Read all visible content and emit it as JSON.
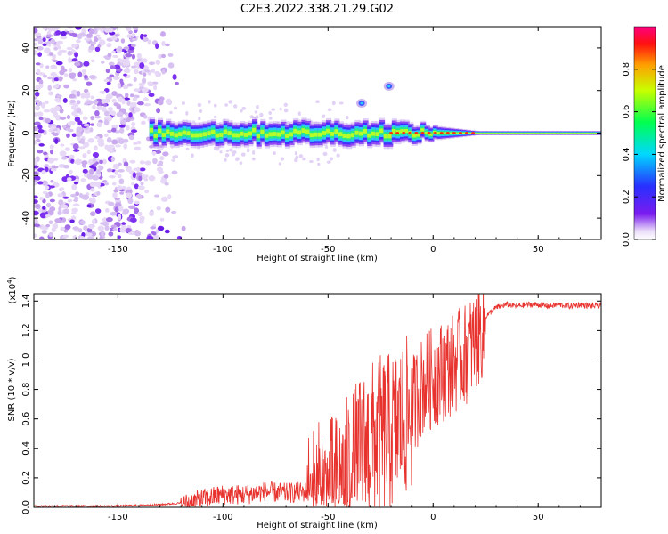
{
  "title": "C2E3.2022.338.21.29.G02",
  "chart_data": [
    {
      "type": "heatmap",
      "xlabel": "Height of straight line (km)",
      "ylabel": "Frequency (Hz)",
      "xlim": [
        -190,
        80
      ],
      "ylim": [
        -50,
        50
      ],
      "xticks": [
        -150,
        -100,
        -50,
        0,
        50
      ],
      "yticks": [
        -40,
        -20,
        0,
        20,
        40
      ],
      "grid": false,
      "colorbar": {
        "label": "Normalized spectral amplitude",
        "range": [
          0,
          1
        ],
        "ticks": [
          "0.0",
          "0.2",
          "0.4",
          "0.6",
          "0.8"
        ]
      },
      "features": [
        {
          "kind": "noise",
          "x_range": [
            -190,
            -118
          ],
          "y_range": [
            -50,
            50
          ]
        },
        {
          "kind": "signal-track",
          "x_range": [
            -135,
            80
          ],
          "center_frequency": 0,
          "spread_hz": [
            6,
            1
          ]
        },
        {
          "kind": "blob",
          "x": -21,
          "y": 22
        },
        {
          "kind": "blob",
          "x": -34,
          "y": 14
        }
      ]
    },
    {
      "type": "line",
      "xlabel": "Height of straight line (km)",
      "ylabel": "SNR (10 * v/v)",
      "y_multiplier": "(x10^4)",
      "xlim": [
        -190,
        80
      ],
      "ylim": [
        0,
        1.45
      ],
      "xticks": [
        -150,
        -100,
        -50,
        0,
        50
      ],
      "yticks": [
        "0.0",
        "0.2",
        "0.4",
        "0.6",
        "0.8",
        "1.0",
        "1.2",
        "1.4"
      ],
      "color": "#e8322d",
      "series": [
        {
          "x": [
            -190,
            -170,
            -150,
            -130,
            -120,
            -110,
            -100,
            -90,
            -80,
            -70,
            -60,
            -50,
            -45,
            -40,
            -35,
            -30,
            -25,
            -20,
            -15,
            -10,
            -5,
            0,
            5,
            10,
            15,
            20,
            25,
            30,
            35,
            40,
            45,
            50,
            55,
            60,
            65,
            70,
            75,
            80
          ],
          "values": [
            0.01,
            0.01,
            0.01,
            0.02,
            0.03,
            0.07,
            0.1,
            0.1,
            0.12,
            0.11,
            0.12,
            0.18,
            0.22,
            0.35,
            0.45,
            0.55,
            0.6,
            0.62,
            0.7,
            0.75,
            0.9,
            0.95,
            1.0,
            1.05,
            1.1,
            1.2,
            1.3,
            1.36,
            1.38,
            1.37,
            1.38,
            1.38,
            1.37,
            1.38,
            1.37,
            1.38,
            1.37,
            1.37
          ]
        }
      ]
    }
  ]
}
